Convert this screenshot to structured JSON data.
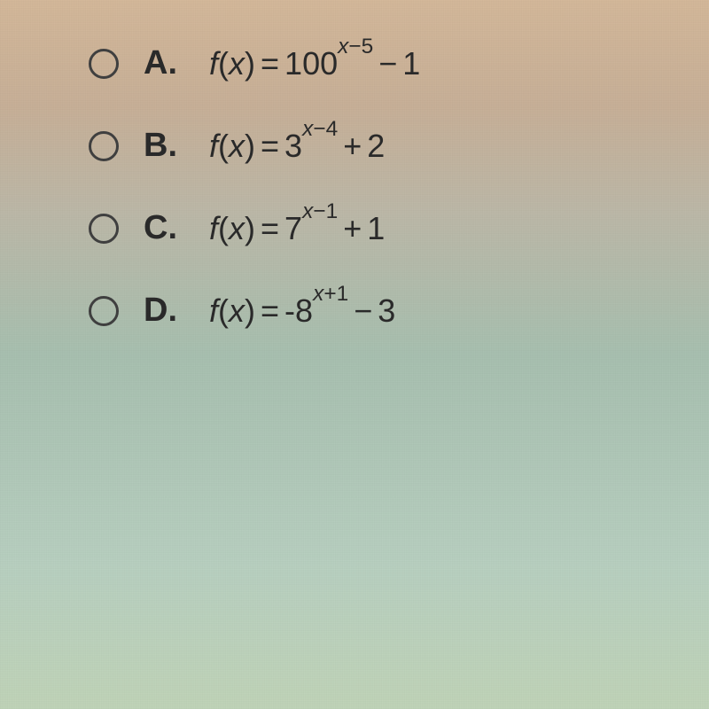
{
  "options": [
    {
      "letter": "A.",
      "fn": "f",
      "arg": "x",
      "base": "100",
      "exp_var": "x",
      "exp_op": "−",
      "exp_num": "5",
      "tail_op": "−",
      "tail_num": "1",
      "leading_neg": ""
    },
    {
      "letter": "B.",
      "fn": "f",
      "arg": "x",
      "base": "3",
      "exp_var": "x",
      "exp_op": "−",
      "exp_num": "4",
      "tail_op": "+",
      "tail_num": "2",
      "leading_neg": ""
    },
    {
      "letter": "C.",
      "fn": "f",
      "arg": "x",
      "base": "7",
      "exp_var": "x",
      "exp_op": "−",
      "exp_num": "1",
      "tail_op": "+",
      "tail_num": "1",
      "leading_neg": ""
    },
    {
      "letter": "D.",
      "fn": "f",
      "arg": "x",
      "base": "8",
      "exp_var": "x",
      "exp_op": "+",
      "exp_num": "1",
      "tail_op": "−",
      "tail_num": "3",
      "leading_neg": "-"
    }
  ],
  "colors": {
    "text": "#2a2a2a",
    "radio_border": "#404040"
  },
  "font_sizes": {
    "label": 38,
    "formula": 36
  }
}
